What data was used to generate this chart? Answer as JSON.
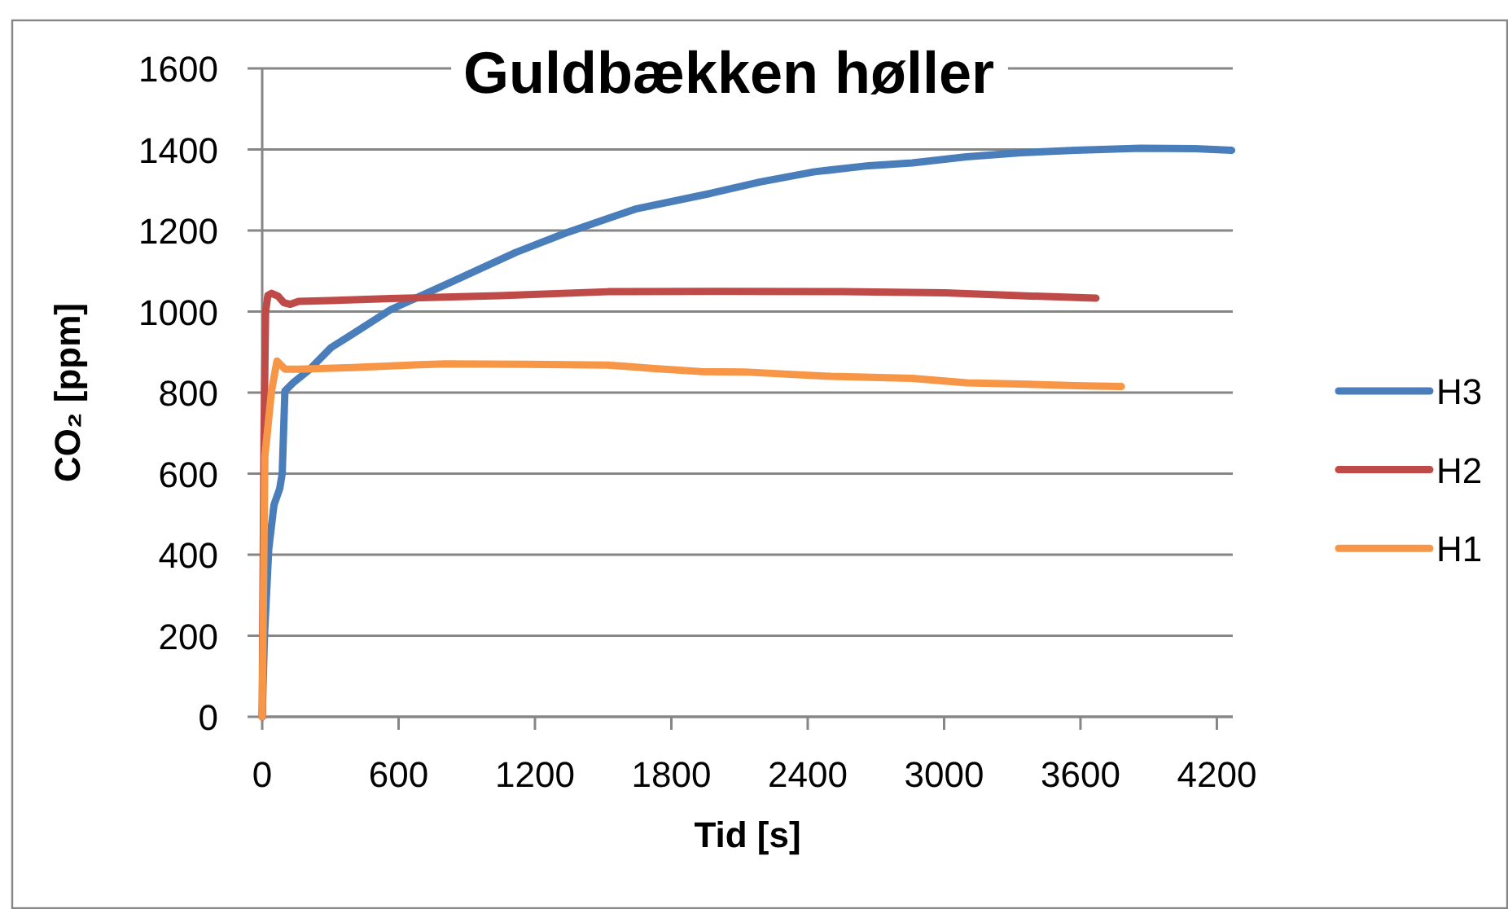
{
  "chart_data": {
    "type": "line",
    "title": "Guldbækken høller",
    "xlabel": "Tid [s]",
    "ylabel": "CO₂ [ppm]",
    "xlim": [
      0,
      4270
    ],
    "xticks": [
      0,
      600,
      1200,
      1800,
      2400,
      3000,
      3600,
      4200
    ],
    "ylim": [
      0,
      1600
    ],
    "yticks": [
      0,
      200,
      400,
      600,
      800,
      1000,
      1200,
      1400,
      1600
    ],
    "grid": "y",
    "legend": "right",
    "series": [
      {
        "name": "H3",
        "color": "#4a7ebb",
        "x": [
          0,
          10,
          29,
          52,
          77,
          88,
          100,
          136,
          208,
          303,
          399,
          566,
          829,
          1116,
          1331,
          1642,
          1976,
          2191,
          2430,
          2669,
          2860,
          3099,
          3338,
          3577,
          3864,
          4103,
          4265
        ],
        "values": [
          0,
          200,
          415,
          523,
          563,
          600,
          804,
          824,
          857,
          911,
          945,
          1005,
          1072,
          1146,
          1193,
          1253,
          1292,
          1320,
          1345,
          1360,
          1367,
          1382,
          1392,
          1398,
          1403,
          1402,
          1398
        ]
      },
      {
        "name": "H2",
        "color": "#be4b48",
        "x": [
          0,
          8,
          15,
          25,
          41,
          70,
          95,
          124,
          160,
          300,
          566,
          1044,
          1522,
          2000,
          2550,
          3003,
          3290,
          3668
        ],
        "values": [
          0,
          700,
          1000,
          1040,
          1045,
          1038,
          1022,
          1018,
          1025,
          1027,
          1032,
          1039,
          1049,
          1050,
          1049,
          1046,
          1040,
          1033
        ]
      },
      {
        "name": "H1",
        "color": "#f79646",
        "x": [
          0,
          12,
          41,
          65,
          100,
          160,
          400,
          566,
          805,
          1164,
          1522,
          1713,
          1928,
          2119,
          2502,
          2860,
          3099,
          3338,
          3577,
          3780
        ],
        "values": [
          0,
          643,
          804,
          878,
          858,
          858,
          862,
          866,
          871,
          870,
          868,
          860,
          852,
          851,
          840,
          835,
          824,
          821,
          817,
          815
        ]
      }
    ]
  }
}
